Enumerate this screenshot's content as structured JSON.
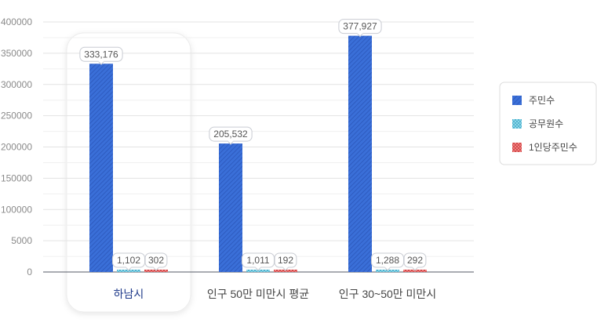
{
  "chart_data": {
    "type": "bar",
    "categories": [
      "하남시",
      "인구 50만 미만시 평균",
      "인구 30~50만 미만시"
    ],
    "highlight_category": "하남시",
    "series": [
      {
        "name": "주민수",
        "values": [
          333176,
          205532,
          377927
        ],
        "color": "#3a6fd8"
      },
      {
        "name": "공무원수",
        "values": [
          1102,
          1011,
          1288
        ],
        "color": "#7ccde0"
      },
      {
        "name": "1인당주민수",
        "values": [
          302,
          192,
          292
        ],
        "color": "#e06a6a"
      }
    ],
    "yticks": [
      "0",
      "5000",
      "100000",
      "150000",
      "200000",
      "250000",
      "300000",
      "350000",
      "400000"
    ],
    "ylim": [
      0,
      400000
    ],
    "grid": true,
    "legend_position": "right",
    "title": "",
    "xlabel": "",
    "ylabel": ""
  }
}
